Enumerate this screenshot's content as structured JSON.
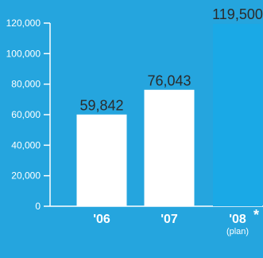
{
  "chart_data": {
    "type": "bar",
    "categories": [
      "'06",
      "'07",
      "'08"
    ],
    "values": [
      59842,
      76043,
      119500
    ],
    "value_labels": [
      "59,842",
      "76,043",
      "119,500"
    ],
    "ylim": [
      0,
      120000
    ],
    "yticks": [
      0,
      20000,
      40000,
      60000,
      80000,
      100000,
      120000
    ],
    "ytick_labels": [
      "0",
      "20,000",
      "40,000",
      "60,000",
      "80,000",
      "100,000",
      "120,000"
    ],
    "annotations": [
      {
        "category": "'08",
        "marker": "*",
        "note": "(plan)"
      }
    ],
    "grid": false,
    "colors": {
      "background": "#25a5de",
      "bar_actual": "#ffffff",
      "bar_plan": "#1aa9e6",
      "bar_outline": "#ffffff",
      "axis": "#ffffff",
      "value_text": "#2b2b2b"
    }
  }
}
